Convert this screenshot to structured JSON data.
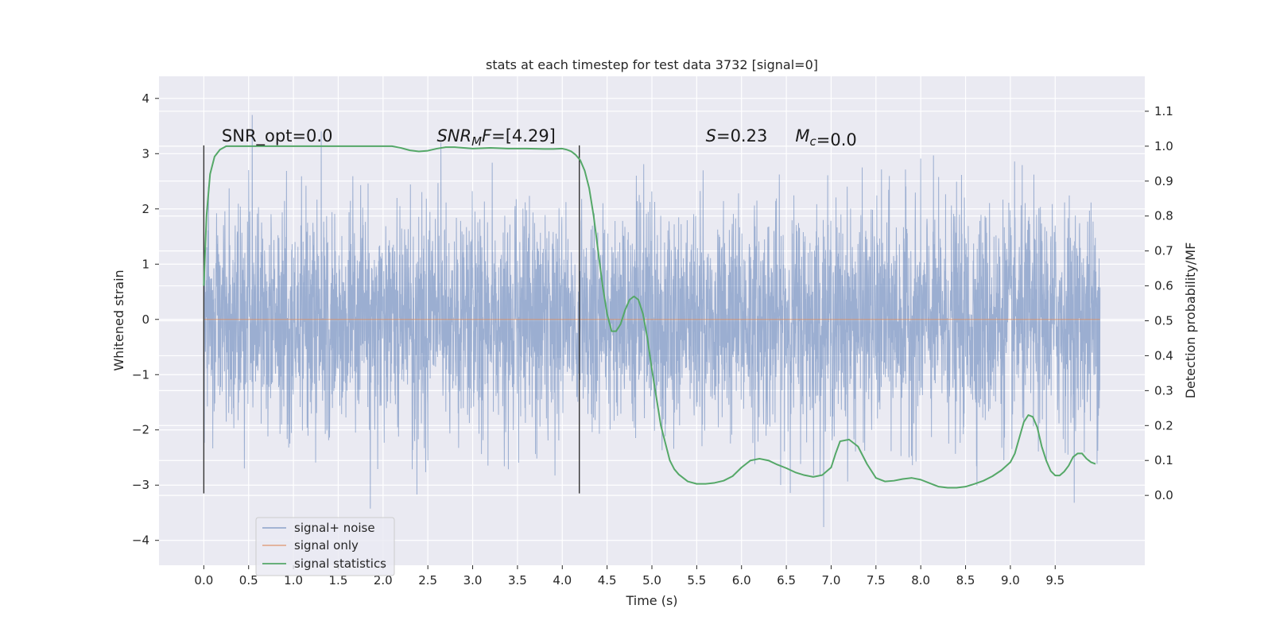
{
  "chart_data": {
    "type": "line",
    "title": "stats at each timestep for test data 3732 [signal=0]",
    "xlabel": "Time (s)",
    "ylabel_left": "Whitened strain",
    "ylabel_right": "Detection probability/MF",
    "xlim": [
      -0.5,
      10.5
    ],
    "ylim_left": [
      -4.45,
      4.4
    ],
    "ylim_right": [
      -0.2,
      1.2
    ],
    "grid": true,
    "legend_position": "lower-left",
    "x_ticks": [
      0.0,
      0.5,
      1.0,
      1.5,
      2.0,
      2.5,
      3.0,
      3.5,
      4.0,
      4.5,
      5.0,
      5.5,
      6.0,
      6.5,
      7.0,
      7.5,
      8.0,
      8.5,
      9.0,
      9.5
    ],
    "x_tick_labels": [
      "0.0",
      "0.5",
      "1.0",
      "1.5",
      "2.0",
      "2.5",
      "3.0",
      "3.5",
      "4.0",
      "4.5",
      "5.0",
      "5.5",
      "6.0",
      "6.5",
      "7.0",
      "7.5",
      "8.0",
      "8.5",
      "9.0",
      "9.5"
    ],
    "y_left_ticks": [
      4,
      3,
      2,
      1,
      0,
      -1,
      -2,
      -3,
      -4
    ],
    "y_left_tick_labels": [
      "4",
      "3",
      "2",
      "1",
      "0",
      "−1",
      "−2",
      "−3",
      "−4"
    ],
    "y_right_ticks": [
      1.1,
      1.0,
      0.9,
      0.8,
      0.7,
      0.6,
      0.5,
      0.4,
      0.3,
      0.2,
      0.1,
      0.0
    ],
    "y_right_tick_labels": [
      "1.1",
      "1.0",
      "0.9",
      "0.8",
      "0.7",
      "0.6",
      "0.5",
      "0.4",
      "0.3",
      "0.2",
      "0.1",
      "0.0"
    ],
    "vertical_markers": [
      {
        "x": 0.0,
        "y_range": [
          -3.15,
          3.15
        ]
      },
      {
        "x": 4.19,
        "y_range": [
          -3.15,
          3.15
        ]
      }
    ],
    "annotations": [
      {
        "text": "SNR_opt=0.0",
        "x": 0.2,
        "y": 3.22
      },
      {
        "text": "SNR_MF=[4.29]",
        "x": 2.6,
        "y": 3.22
      },
      {
        "text": "S=0.23",
        "x": 5.6,
        "y": 3.22
      },
      {
        "text": "M_c=0.0",
        "x": 6.6,
        "y": 3.22
      }
    ],
    "series": [
      {
        "name": "signal+ noise",
        "axis": "left",
        "color": "#4c72b0",
        "opacity": 0.5,
        "description": "dense white noise, time 0 to 10 s, amplitude about ±4"
      },
      {
        "name": "signal only",
        "axis": "left",
        "color": "#dd8452",
        "x": [
          0.0,
          10.0
        ],
        "y": [
          0,
          0
        ]
      },
      {
        "name": "signal statistics",
        "axis": "right",
        "color": "#55a868",
        "x": [
          0.0,
          0.03,
          0.07,
          0.12,
          0.18,
          0.25,
          0.35,
          0.5,
          1.0,
          1.5,
          1.8,
          2.0,
          2.1,
          2.2,
          2.3,
          2.4,
          2.5,
          2.6,
          2.7,
          2.8,
          2.9,
          3.0,
          3.2,
          3.4,
          3.6,
          3.8,
          3.9,
          4.0,
          4.05,
          4.1,
          4.15,
          4.2,
          4.25,
          4.3,
          4.35,
          4.4,
          4.45,
          4.5,
          4.55,
          4.6,
          4.65,
          4.7,
          4.75,
          4.8,
          4.85,
          4.9,
          4.95,
          5.0,
          5.05,
          5.1,
          5.15,
          5.2,
          5.25,
          5.3,
          5.4,
          5.5,
          5.6,
          5.7,
          5.8,
          5.9,
          6.0,
          6.1,
          6.2,
          6.3,
          6.4,
          6.5,
          6.6,
          6.7,
          6.8,
          6.9,
          7.0,
          7.05,
          7.1,
          7.2,
          7.3,
          7.4,
          7.5,
          7.6,
          7.7,
          7.8,
          7.9,
          8.0,
          8.1,
          8.2,
          8.3,
          8.4,
          8.5,
          8.6,
          8.7,
          8.8,
          8.9,
          9.0,
          9.05,
          9.1,
          9.15,
          9.2,
          9.25,
          9.3,
          9.35,
          9.4,
          9.45,
          9.5,
          9.55,
          9.6,
          9.65,
          9.7,
          9.75,
          9.8,
          9.85,
          9.9,
          9.95
        ],
        "y": [
          0.6,
          0.8,
          0.92,
          0.97,
          0.99,
          1.0,
          1.0,
          1.0,
          1.0,
          1.0,
          1.0,
          1.0,
          1.0,
          0.995,
          0.988,
          0.985,
          0.987,
          0.993,
          0.997,
          0.997,
          0.995,
          0.993,
          0.995,
          0.993,
          0.993,
          0.992,
          0.992,
          0.993,
          0.99,
          0.985,
          0.975,
          0.96,
          0.93,
          0.88,
          0.8,
          0.7,
          0.6,
          0.52,
          0.47,
          0.47,
          0.49,
          0.53,
          0.56,
          0.57,
          0.56,
          0.52,
          0.45,
          0.36,
          0.28,
          0.2,
          0.15,
          0.1,
          0.075,
          0.06,
          0.04,
          0.033,
          0.033,
          0.036,
          0.042,
          0.055,
          0.08,
          0.1,
          0.105,
          0.1,
          0.088,
          0.078,
          0.066,
          0.058,
          0.053,
          0.058,
          0.08,
          0.12,
          0.155,
          0.16,
          0.14,
          0.09,
          0.05,
          0.04,
          0.042,
          0.047,
          0.05,
          0.045,
          0.035,
          0.025,
          0.022,
          0.022,
          0.025,
          0.033,
          0.042,
          0.055,
          0.072,
          0.095,
          0.12,
          0.165,
          0.21,
          0.23,
          0.225,
          0.195,
          0.14,
          0.1,
          0.07,
          0.057,
          0.057,
          0.068,
          0.085,
          0.11,
          0.12,
          0.12,
          0.105,
          0.095,
          0.09
        ]
      }
    ]
  }
}
